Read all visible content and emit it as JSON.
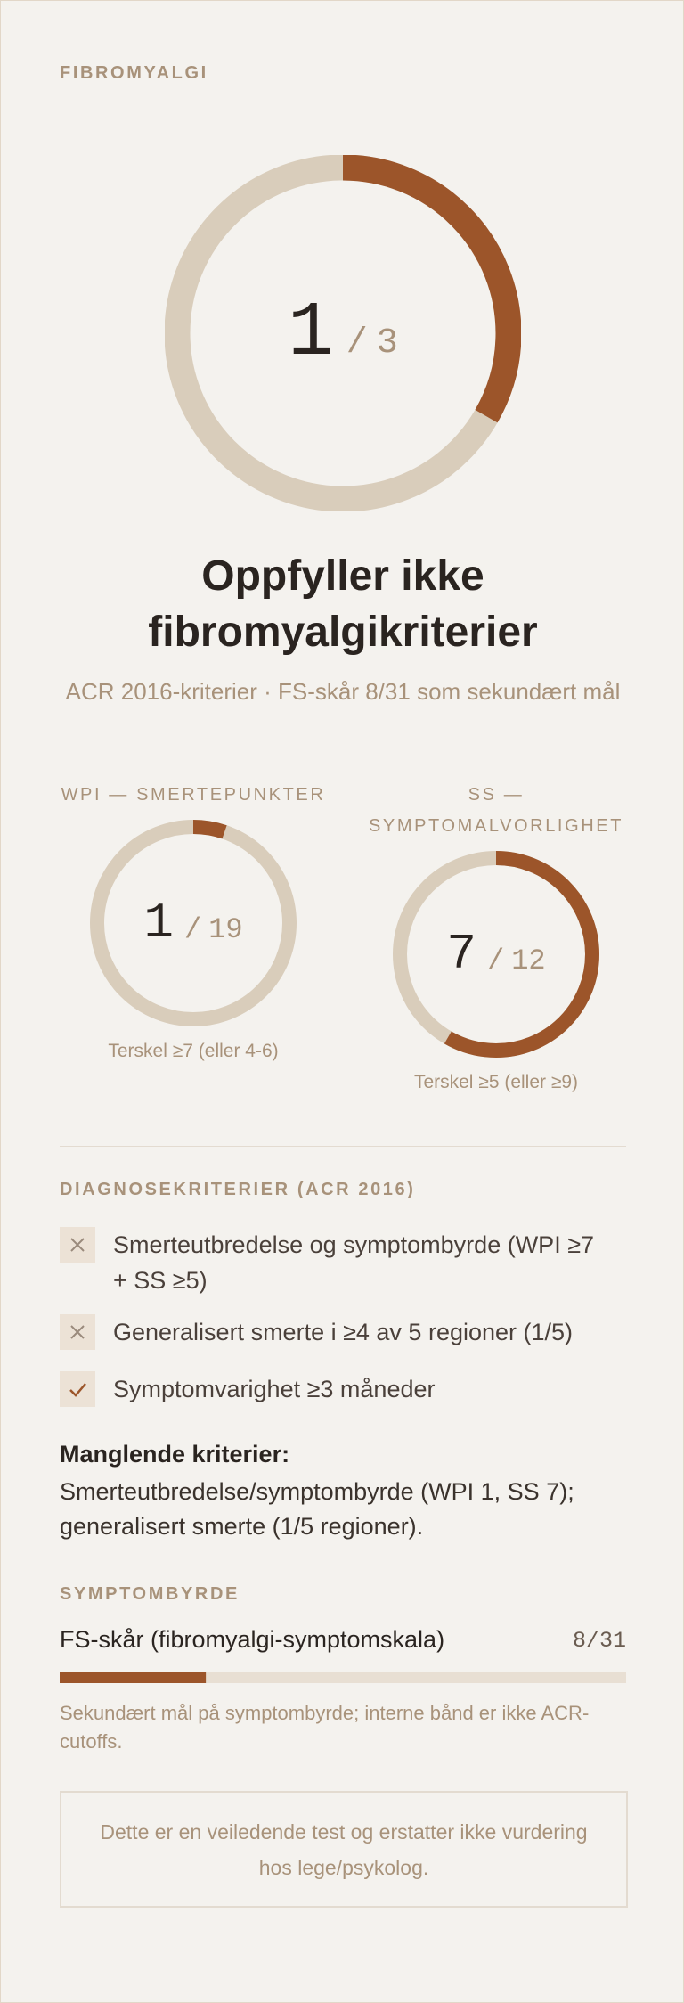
{
  "header": {
    "title": "FIBROMYALGI"
  },
  "main": {
    "score": {
      "value": 1,
      "max": 3
    },
    "separator": "/",
    "title": "Oppfyller ikke fibromyalgikriterier",
    "subtitle": "ACR 2016-kriterier · FS-skår 8/31 som sekundært mål"
  },
  "gauges": [
    {
      "label": "WPI — SMERTEPUNKTER",
      "value": 1,
      "max": 19,
      "threshold": "Terskel ≥7 (eller 4-6)"
    },
    {
      "label": "SS — SYMPTOMALVORLIGHET",
      "value": 7,
      "max": 12,
      "threshold": "Terskel ≥5 (eller ≥9)"
    }
  ],
  "criteria": {
    "title": "DIAGNOSEKRITERIER (ACR 2016)",
    "items": [
      {
        "text": "Smerteutbredelse og symptombyrde (WPI ≥7 + SS ≥5)",
        "met": false
      },
      {
        "text": "Generalisert smerte i ≥4 av 5 regioner (1/5)",
        "met": false
      },
      {
        "text": "Symptomvarighet ≥3 måneder",
        "met": true
      }
    ]
  },
  "missing": {
    "title": "Manglende kriterier:",
    "text": "Smerteutbredelse/symptombyrde (WPI 1, SS 7); generalisert smerte (1/5 regioner)."
  },
  "burden": {
    "title": "SYMPTOMBYRDE",
    "label": "FS-skår (fibromyalgi-symptomskala)",
    "value": 8,
    "max": 31,
    "note": "Sekundært mål på symptombyrde; interne bånd er ikke ACR-cutoffs."
  },
  "disclaimer": "Dette er en veiledende test og erstatter ikke vurdering hos lege/psykolog."
}
